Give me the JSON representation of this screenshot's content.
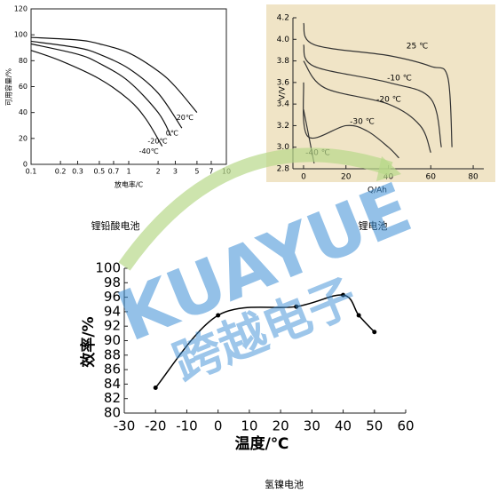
{
  "chart_data": [
    {
      "type": "line",
      "title": "锂铅酸电池",
      "xscale": "log",
      "frame": true,
      "xlabel": "放电率/C",
      "ylabel": "可用容量/%",
      "xlim": [
        0.1,
        10
      ],
      "ylim": [
        0,
        120
      ],
      "xticks": [
        0.1,
        0.2,
        0.3,
        0.5,
        0.7,
        1,
        2,
        3,
        5,
        7,
        10
      ],
      "yticks": [
        0,
        20,
        40,
        60,
        80,
        100,
        120
      ],
      "series": [
        {
          "name": "20℃",
          "color": "#111111",
          "x": [
            0.1,
            0.3,
            0.5,
            1,
            2,
            3,
            5
          ],
          "values": [
            98,
            96,
            93,
            86,
            72,
            60,
            40
          ]
        },
        {
          "name": "0℃",
          "color": "#111111",
          "x": [
            0.1,
            0.3,
            0.5,
            1,
            2,
            3.5
          ],
          "values": [
            95,
            90,
            85,
            74,
            55,
            28
          ]
        },
        {
          "name": "-20℃",
          "color": "#111111",
          "x": [
            0.1,
            0.3,
            0.5,
            1,
            2,
            2.7
          ],
          "values": [
            93,
            85,
            78,
            64,
            40,
            22
          ]
        },
        {
          "name": "-40℃",
          "color": "#111111",
          "x": [
            0.1,
            0.2,
            0.5,
            1,
            1.5,
            2.2
          ],
          "values": [
            88,
            80,
            66,
            50,
            35,
            14
          ]
        }
      ]
    },
    {
      "type": "line",
      "title": "锂电池",
      "background": "#f0e4c6",
      "xlabel": "Q/Ah",
      "ylabel": "V/V",
      "xlim": [
        -5,
        85
      ],
      "ylim": [
        2.8,
        4.2
      ],
      "xticks": [
        0,
        20,
        40,
        60,
        80
      ],
      "yticks": [
        2.8,
        {
          "value": 3,
          "label": "3.0"
        },
        3.2,
        3.4,
        3.6,
        3.8,
        {
          "value": 4,
          "label": "4.0"
        },
        4.2
      ],
      "series": [
        {
          "name": "25 ℃",
          "color": "#333333",
          "x": [
            0,
            5,
            40,
            60,
            68,
            70
          ],
          "values": [
            4.15,
            3.95,
            3.85,
            3.75,
            3.65,
            3.0
          ]
        },
        {
          "name": "-10 ℃",
          "color": "#333333",
          "x": [
            0,
            5,
            40,
            60,
            65
          ],
          "values": [
            3.95,
            3.75,
            3.6,
            3.45,
            3.0
          ]
        },
        {
          "name": "-20 ℃",
          "color": "#333333",
          "x": [
            0,
            10,
            40,
            55,
            60
          ],
          "values": [
            3.8,
            3.55,
            3.4,
            3.2,
            2.95
          ]
        },
        {
          "name": "-30 ℃",
          "color": "#333333",
          "x": [
            0,
            2,
            20,
            30,
            40,
            45
          ],
          "values": [
            3.6,
            3.1,
            3.2,
            3.15,
            3.0,
            2.9
          ]
        },
        {
          "name": "-40 ℃",
          "color": "#333333",
          "x": [
            0,
            5
          ],
          "values": [
            3.35,
            2.85
          ]
        }
      ]
    },
    {
      "type": "line",
      "title": "氢镍电池",
      "markers": true,
      "xlabel": "温度/℃",
      "ylabel": "效率/%",
      "xlim": [
        -30,
        60
      ],
      "ylim": [
        80,
        100
      ],
      "xticks": [
        -30,
        -20,
        -10,
        0,
        10,
        20,
        30,
        40,
        50,
        60
      ],
      "yticks": [
        80,
        82,
        84,
        86,
        88,
        90,
        92,
        94,
        96,
        98,
        100
      ],
      "series": [
        {
          "color": "#000000",
          "x": [
            -20,
            0,
            25,
            40,
            45,
            50
          ],
          "values": [
            83.5,
            93.5,
            94.7,
            96.3,
            93.5,
            91.2
          ]
        }
      ]
    }
  ],
  "watermark": {
    "text": "KUAYUE",
    "subtext": "跨越电子"
  }
}
